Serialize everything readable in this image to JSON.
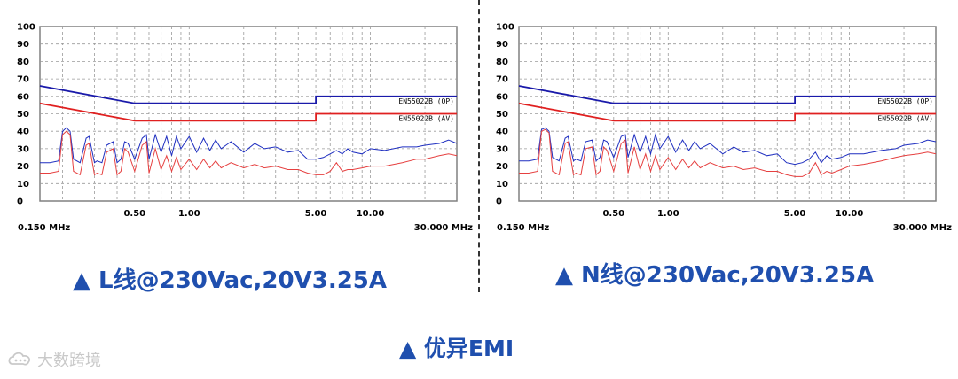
{
  "captions": {
    "left": "▲ L线@230Vac,20V3.25A",
    "right": "▲ N线@230Vac,20V3.25A",
    "bottom": "▲ 优异EMI"
  },
  "watermark": {
    "text": "大数跨境",
    "logo_icon": "cloud-chat-icon"
  },
  "colors": {
    "qp": "#1a1aaa",
    "av": "#e02020",
    "measured_blue": "#1f2fc0",
    "measured_red": "#e64040",
    "caption": "#1f4fae"
  },
  "chart_data": [
    {
      "type": "line",
      "title": "",
      "xlabel": "",
      "ylabel": "",
      "x_scale": "log",
      "xlim": [
        0.15,
        30
      ],
      "ylim": [
        0,
        100
      ],
      "grid": true,
      "x_edge_labels": [
        "0.150 MHz",
        "30.000 MHz"
      ],
      "x_ticks": [
        {
          "value": 0.5,
          "label": "0.50"
        },
        {
          "value": 1,
          "label": "1.00"
        },
        {
          "value": 5,
          "label": "5.00"
        },
        {
          "value": 10,
          "label": "10.00"
        }
      ],
      "y_ticks": [
        0,
        10,
        20,
        30,
        40,
        50,
        60,
        70,
        80,
        90,
        100
      ],
      "series": [
        {
          "name": "EN55022B (QP)",
          "color": "#1a1aaa",
          "x": [
            0.15,
            0.5,
            0.5,
            5,
            5,
            30
          ],
          "y": [
            66,
            56,
            56,
            56,
            60,
            60
          ]
        },
        {
          "name": "EN55022B (AV)",
          "color": "#e02020",
          "x": [
            0.15,
            0.5,
            0.5,
            5,
            5,
            30
          ],
          "y": [
            56,
            46,
            46,
            46,
            50,
            50
          ]
        },
        {
          "color": "#1f2fc0",
          "x": [
            0.15,
            0.17,
            0.19,
            0.2,
            0.21,
            0.22,
            0.23,
            0.25,
            0.27,
            0.28,
            0.3,
            0.31,
            0.33,
            0.35,
            0.38,
            0.4,
            0.42,
            0.44,
            0.46,
            0.5,
            0.55,
            0.58,
            0.6,
            0.65,
            0.7,
            0.75,
            0.8,
            0.85,
            0.9,
            1.0,
            1.1,
            1.2,
            1.3,
            1.4,
            1.5,
            1.7,
            2.0,
            2.3,
            2.6,
            3.0,
            3.5,
            4.0,
            4.5,
            5.0,
            5.5,
            6.0,
            6.5,
            7.0,
            7.5,
            8.0,
            9.0,
            10,
            12,
            15,
            18,
            20,
            24,
            27,
            30
          ],
          "y": [
            22,
            22,
            23,
            40,
            42,
            40,
            24,
            22,
            36,
            37,
            22,
            23,
            22,
            32,
            34,
            22,
            24,
            34,
            33,
            24,
            36,
            38,
            24,
            38,
            28,
            37,
            26,
            37,
            30,
            37,
            28,
            36,
            29,
            35,
            30,
            34,
            28,
            33,
            30,
            31,
            28,
            29,
            24,
            24,
            25,
            27,
            29,
            27,
            30,
            28,
            27,
            30,
            29,
            31,
            31,
            32,
            33,
            35,
            33
          ]
        },
        {
          "color": "#e64040",
          "x": [
            0.15,
            0.17,
            0.19,
            0.2,
            0.21,
            0.22,
            0.23,
            0.25,
            0.27,
            0.28,
            0.3,
            0.31,
            0.33,
            0.35,
            0.38,
            0.4,
            0.42,
            0.44,
            0.46,
            0.5,
            0.55,
            0.58,
            0.6,
            0.65,
            0.7,
            0.75,
            0.8,
            0.85,
            0.9,
            1.0,
            1.1,
            1.2,
            1.3,
            1.4,
            1.5,
            1.7,
            2.0,
            2.3,
            2.6,
            3.0,
            3.5,
            4.0,
            4.5,
            5.0,
            5.5,
            6.0,
            6.5,
            7.0,
            7.5,
            8.0,
            9.0,
            10,
            12,
            15,
            18,
            20,
            24,
            27,
            30
          ],
          "y": [
            16,
            16,
            17,
            38,
            40,
            38,
            17,
            15,
            32,
            33,
            15,
            16,
            15,
            28,
            30,
            15,
            17,
            30,
            28,
            17,
            32,
            34,
            16,
            30,
            18,
            26,
            17,
            25,
            18,
            24,
            18,
            24,
            19,
            23,
            19,
            22,
            19,
            21,
            19,
            20,
            18,
            18,
            16,
            15,
            15,
            17,
            22,
            17,
            18,
            18,
            19,
            20,
            20,
            22,
            24,
            24,
            26,
            27,
            26
          ]
        }
      ],
      "limit_labels": [
        "EN55022B (QP)",
        "EN55022B (AV)"
      ]
    },
    {
      "type": "line",
      "title": "",
      "xlabel": "",
      "ylabel": "",
      "x_scale": "log",
      "xlim": [
        0.15,
        30
      ],
      "ylim": [
        0,
        100
      ],
      "grid": true,
      "x_edge_labels": [
        "0.150 MHz",
        "30.000 MHz"
      ],
      "x_ticks": [
        {
          "value": 0.5,
          "label": "0.50"
        },
        {
          "value": 1,
          "label": "1.00"
        },
        {
          "value": 5,
          "label": "5.00"
        },
        {
          "value": 10,
          "label": "10.00"
        }
      ],
      "y_ticks": [
        0,
        10,
        20,
        30,
        40,
        50,
        60,
        70,
        80,
        90,
        100
      ],
      "series": [
        {
          "name": "EN55022B (QP)",
          "color": "#1a1aaa",
          "x": [
            0.15,
            0.5,
            0.5,
            5,
            5,
            30
          ],
          "y": [
            66,
            56,
            56,
            56,
            60,
            60
          ]
        },
        {
          "name": "EN55022B (AV)",
          "color": "#e02020",
          "x": [
            0.15,
            0.5,
            0.5,
            5,
            5,
            30
          ],
          "y": [
            56,
            46,
            46,
            46,
            50,
            50
          ]
        },
        {
          "color": "#1f2fc0",
          "x": [
            0.15,
            0.17,
            0.19,
            0.2,
            0.21,
            0.22,
            0.23,
            0.25,
            0.27,
            0.28,
            0.3,
            0.31,
            0.33,
            0.35,
            0.38,
            0.4,
            0.42,
            0.44,
            0.46,
            0.5,
            0.55,
            0.58,
            0.6,
            0.65,
            0.7,
            0.75,
            0.8,
            0.85,
            0.9,
            1.0,
            1.1,
            1.2,
            1.3,
            1.4,
            1.5,
            1.7,
            2.0,
            2.3,
            2.6,
            3.0,
            3.5,
            4.0,
            4.5,
            5.0,
            5.5,
            6.0,
            6.5,
            7.0,
            7.5,
            8.0,
            9.0,
            10,
            12,
            15,
            18,
            20,
            24,
            27,
            30
          ],
          "y": [
            23,
            23,
            24,
            41,
            42,
            40,
            25,
            23,
            36,
            37,
            23,
            24,
            23,
            34,
            35,
            23,
            25,
            35,
            34,
            25,
            37,
            38,
            25,
            38,
            28,
            37,
            27,
            38,
            30,
            37,
            28,
            35,
            29,
            34,
            30,
            33,
            27,
            31,
            28,
            29,
            26,
            27,
            22,
            21,
            22,
            24,
            28,
            22,
            26,
            24,
            25,
            27,
            27,
            29,
            30,
            32,
            33,
            35,
            34
          ]
        },
        {
          "color": "#e64040",
          "x": [
            0.15,
            0.17,
            0.19,
            0.2,
            0.21,
            0.22,
            0.23,
            0.25,
            0.27,
            0.28,
            0.3,
            0.31,
            0.33,
            0.35,
            0.38,
            0.4,
            0.42,
            0.44,
            0.46,
            0.5,
            0.55,
            0.58,
            0.6,
            0.65,
            0.7,
            0.75,
            0.8,
            0.85,
            0.9,
            1.0,
            1.1,
            1.2,
            1.3,
            1.4,
            1.5,
            1.7,
            2.0,
            2.3,
            2.6,
            3.0,
            3.5,
            4.0,
            4.5,
            5.0,
            5.5,
            6.0,
            6.5,
            7.0,
            7.5,
            8.0,
            9.0,
            10,
            12,
            15,
            18,
            20,
            24,
            27,
            30
          ],
          "y": [
            16,
            16,
            17,
            40,
            41,
            39,
            17,
            15,
            33,
            34,
            15,
            16,
            15,
            30,
            31,
            15,
            17,
            31,
            29,
            17,
            33,
            35,
            16,
            31,
            18,
            27,
            17,
            26,
            18,
            25,
            18,
            24,
            19,
            23,
            19,
            22,
            19,
            20,
            18,
            19,
            17,
            17,
            15,
            14,
            14,
            16,
            22,
            15,
            17,
            16,
            18,
            20,
            21,
            23,
            25,
            26,
            27,
            28,
            27
          ]
        }
      ],
      "limit_labels": [
        "EN55022B (QP)",
        "EN55022B (AV)"
      ]
    }
  ]
}
